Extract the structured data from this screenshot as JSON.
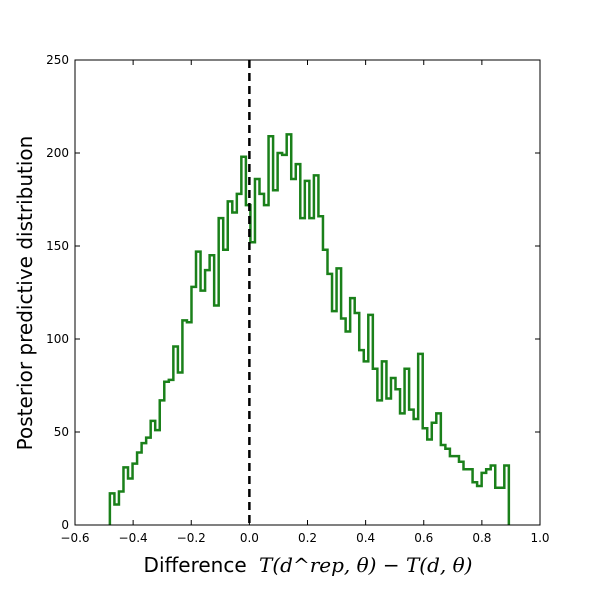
{
  "chart_data": {
    "type": "step-histogram",
    "title": "",
    "xlabel_text": "Difference",
    "xlabel_math": "T(d^rep, θ) − T(d, θ)",
    "ylabel": "Posterior predictive distribution",
    "xlim": [
      -0.6,
      1.0
    ],
    "ylim": [
      0,
      250
    ],
    "x_ticks": [
      "−0.6",
      "−0.4",
      "−0.2",
      "0.0",
      "0.2",
      "0.4",
      "0.6",
      "0.8",
      "1.0"
    ],
    "y_ticks": [
      "0",
      "50",
      "100",
      "150",
      "200",
      "250"
    ],
    "reference_line": {
      "x": 0.0,
      "style": "dashed",
      "color": "#000000"
    },
    "series": [
      {
        "color": "#1a801a",
        "bin_width": 0.0156,
        "x_start": -0.48,
        "values": [
          17,
          11,
          18,
          31,
          25,
          33,
          39,
          44,
          47,
          56,
          51,
          67,
          77,
          78,
          96,
          82,
          110,
          109,
          128,
          147,
          126,
          137,
          145,
          118,
          165,
          148,
          174,
          168,
          178,
          198,
          172,
          152,
          186,
          178,
          172,
          209,
          180,
          200,
          199,
          210,
          186,
          194,
          165,
          185,
          165,
          188,
          166,
          148,
          135,
          115,
          138,
          111,
          104,
          122,
          114,
          94,
          88,
          113,
          84,
          67,
          88,
          68,
          79,
          73,
          60,
          84,
          62,
          57,
          92,
          52,
          46,
          55,
          60,
          43,
          41,
          37,
          37,
          34,
          30,
          30,
          23,
          21,
          28,
          30,
          32,
          20,
          20,
          32
        ]
      }
    ]
  }
}
